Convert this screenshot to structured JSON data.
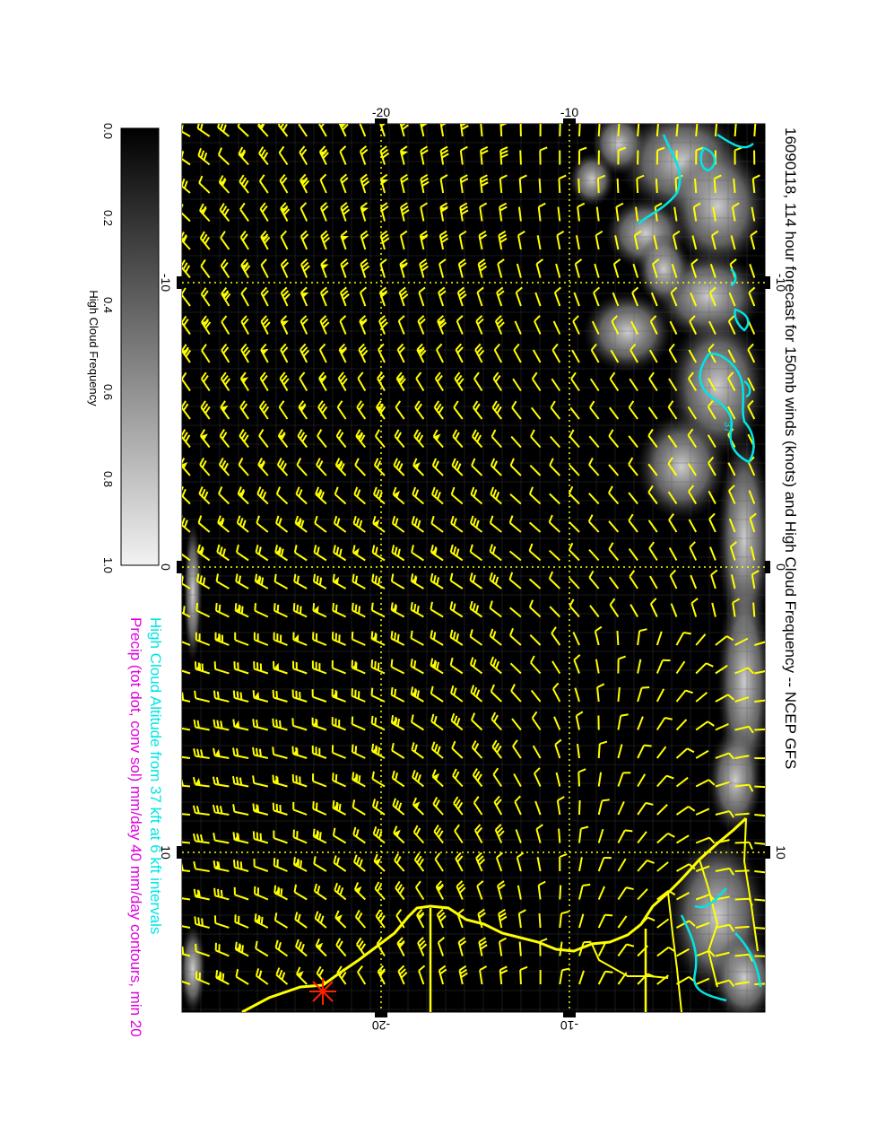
{
  "title": "16090118, 114 hour forecast for 150mb winds (knots) and High Cloud Frequency -- NCEP GFS",
  "legend": {
    "line1": "High Cloud Altitude from 37 kft at 6 kft intervals",
    "line2": "Precip (tot dot, conv sol) mm/day 40 mm/day contours, min 20",
    "line1_color": "#00e5e5",
    "line2_color": "#e000e0"
  },
  "colorbar": {
    "label": "High Cloud Frequency",
    "ticks": [
      "0.0",
      "0.2",
      "0.4",
      "0.6",
      "0.8",
      "1.0"
    ],
    "range": [
      0.0,
      1.0
    ]
  },
  "axes": {
    "top_ticks": [
      "-20",
      "-10"
    ],
    "bottom_ticks": [
      "-20",
      "-10"
    ],
    "left_ticks": [
      "-10",
      "0",
      "10"
    ],
    "right_ticks": [
      "-10",
      "0",
      "10"
    ]
  },
  "contour_label": "37",
  "colors": {
    "background": "#000000",
    "barbs": "#ffff00",
    "coast": "#ffff00",
    "cloud_contour": "#00e5e5",
    "grid": "#ffff00",
    "marker": "#ff2000"
  },
  "icons": [
    "wind-barb-icon",
    "star-marker-icon"
  ]
}
